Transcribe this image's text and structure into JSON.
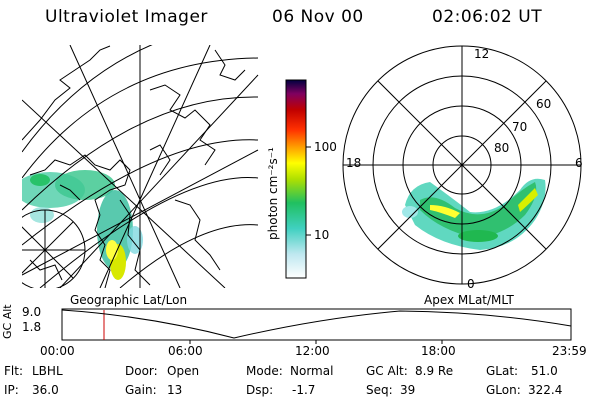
{
  "header": {
    "instrument": "Ultraviolet Imager",
    "date": "06 Nov 00",
    "time": "02:06:02 UT"
  },
  "colorbar": {
    "unit_label": "photon cm⁻²s⁻¹",
    "ticks": [
      "100",
      "10"
    ]
  },
  "left_panel": {
    "label": "Geographic Lat/Lon"
  },
  "right_panel": {
    "label": "Apex MLat/MLT",
    "mlt_labels": [
      "12",
      "18",
      "6",
      "0"
    ],
    "mlat_labels": [
      "60",
      "70",
      "80"
    ]
  },
  "altitude_plot": {
    "ylabel": "GC Alt",
    "yticks": [
      "9.0",
      "1.8"
    ],
    "xticks": [
      "00:00",
      "06:00",
      "12:00",
      "18:00",
      "23:59"
    ],
    "marker_color": "#cc0000"
  },
  "info": {
    "filter": {
      "label": "Flt:",
      "value": "LBHL"
    },
    "ip": {
      "label": "IP:",
      "value": "36.0"
    },
    "door": {
      "label": "Door:",
      "value": "Open"
    },
    "gain": {
      "label": "Gain:",
      "value": "13"
    },
    "mode": {
      "label": "Mode:",
      "value": "Normal"
    },
    "dsp": {
      "label": "Dsp:",
      "value": "-1.7"
    },
    "gc_alt": {
      "label": "GC Alt:",
      "value": "8.9 Re"
    },
    "seq": {
      "label": "Seq:",
      "value": "39"
    },
    "glat": {
      "label": "GLat:",
      "value": "51.0"
    },
    "glon": {
      "label": "GLon:",
      "value": "322.4"
    }
  },
  "colors": {
    "colorbar_stops": [
      "#ffffff",
      "#bfe8f0",
      "#40d0c0",
      "#20c060",
      "#b0e000",
      "#ffff00",
      "#ffa000",
      "#ff3000",
      "#c00000",
      "#800060",
      "#000040"
    ]
  }
}
